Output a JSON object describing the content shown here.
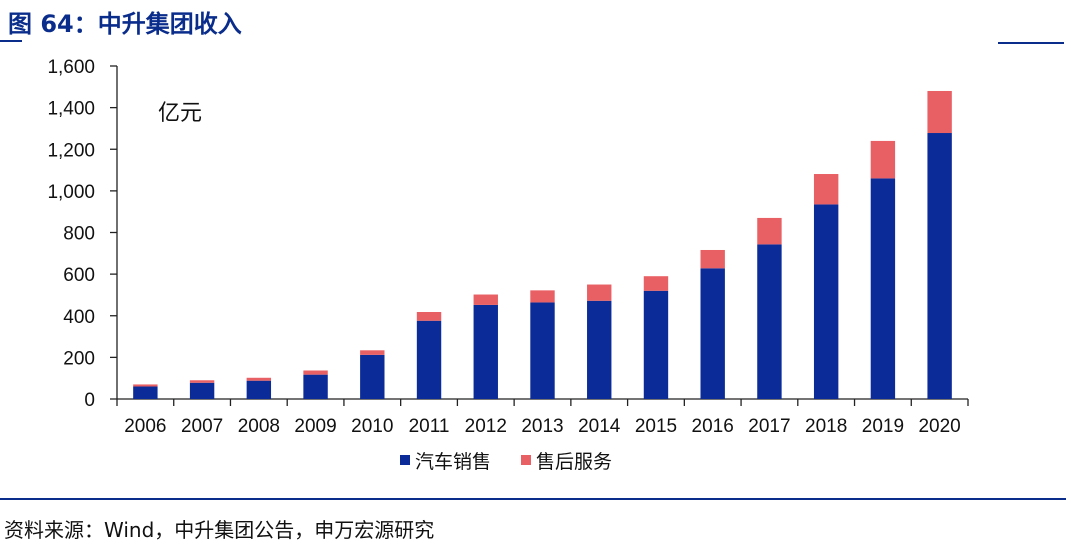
{
  "figure": {
    "title": "图 64：中升集团收入",
    "source": "资料来源：Wind，中升集团公告，申万宏源研究"
  },
  "colors": {
    "title_blue": "#0a2d8c",
    "auto_sales": "#0b2b99",
    "after_sales": "#e96064",
    "axis": "#222222"
  },
  "chart_data": {
    "type": "bar",
    "stacked": true,
    "title": "图 64：中升集团收入",
    "unit_label": "亿元",
    "xlabel": "",
    "ylabel": "",
    "ylim": [
      0,
      1600
    ],
    "yticks": [
      0,
      200,
      400,
      600,
      800,
      1000,
      1200,
      1400,
      1600
    ],
    "ytick_labels": [
      "0",
      "200",
      "400",
      "600",
      "800",
      "1,000",
      "1,200",
      "1,400",
      "1,600"
    ],
    "categories": [
      "2006",
      "2007",
      "2008",
      "2009",
      "2010",
      "2011",
      "2012",
      "2013",
      "2014",
      "2015",
      "2016",
      "2017",
      "2018",
      "2019",
      "2020"
    ],
    "series": [
      {
        "name": "汽车销售",
        "color": "#0b2b99",
        "values": [
          60,
          78,
          88,
          117,
          212,
          376,
          452,
          464,
          472,
          520,
          628,
          743,
          935,
          1060,
          1278
        ]
      },
      {
        "name": "售后服务",
        "color": "#e96064",
        "values": [
          10,
          12,
          14,
          20,
          22,
          42,
          50,
          58,
          78,
          70,
          88,
          127,
          146,
          180,
          202
        ]
      }
    ],
    "legend_position": "bottom-center",
    "grid": false
  }
}
